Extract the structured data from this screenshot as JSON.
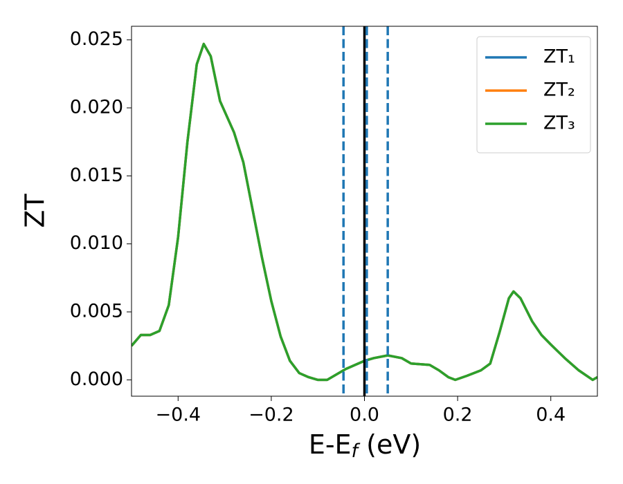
{
  "chart_data": {
    "type": "line",
    "ylabel": "ZT",
    "xlabel": {
      "main": "E-E",
      "sub": "f",
      "unit": " (eV)"
    },
    "x": [
      -0.5,
      -0.48,
      -0.46,
      -0.44,
      -0.42,
      -0.4,
      -0.38,
      -0.36,
      -0.345,
      -0.33,
      -0.31,
      -0.28,
      -0.26,
      -0.24,
      -0.22,
      -0.2,
      -0.18,
      -0.16,
      -0.14,
      -0.12,
      -0.1,
      -0.08,
      -0.06,
      -0.04,
      -0.02,
      0.0,
      0.02,
      0.05,
      0.08,
      0.1,
      0.14,
      0.16,
      0.18,
      0.195,
      0.22,
      0.25,
      0.27,
      0.29,
      0.31,
      0.32,
      0.335,
      0.36,
      0.38,
      0.4,
      0.43,
      0.46,
      0.49,
      0.5
    ],
    "series": [
      {
        "name": "ZT₁",
        "color": "#1f77b4",
        "values": [
          0.0025,
          0.0033,
          0.0033,
          0.0036,
          0.0055,
          0.0105,
          0.0175,
          0.0232,
          0.0247,
          0.0238,
          0.0205,
          0.0182,
          0.016,
          0.0125,
          0.009,
          0.0058,
          0.0032,
          0.0014,
          0.0005,
          0.0002,
          0.0,
          0.0,
          0.0004,
          0.0008,
          0.0011,
          0.0014,
          0.0016,
          0.0018,
          0.0016,
          0.0012,
          0.0011,
          0.0007,
          0.0002,
          0.0,
          0.0003,
          0.0007,
          0.0012,
          0.0035,
          0.006,
          0.0065,
          0.006,
          0.0043,
          0.0033,
          0.0026,
          0.0016,
          0.0007,
          0.0,
          0.0002
        ]
      },
      {
        "name": "ZT₂",
        "color": "#ff7f0e",
        "values": [
          0.0025,
          0.0033,
          0.0033,
          0.0036,
          0.0055,
          0.0105,
          0.0175,
          0.0232,
          0.0247,
          0.0238,
          0.0205,
          0.0182,
          0.016,
          0.0125,
          0.009,
          0.0058,
          0.0032,
          0.0014,
          0.0005,
          0.0002,
          0.0,
          0.0,
          0.0004,
          0.0008,
          0.0011,
          0.0014,
          0.0016,
          0.0018,
          0.0016,
          0.0012,
          0.0011,
          0.0007,
          0.0002,
          0.0,
          0.0003,
          0.0007,
          0.0012,
          0.0035,
          0.006,
          0.0065,
          0.006,
          0.0043,
          0.0033,
          0.0026,
          0.0016,
          0.0007,
          0.0,
          0.0002
        ]
      },
      {
        "name": "ZT₃",
        "color": "#2ca02c",
        "values": [
          0.0025,
          0.0033,
          0.0033,
          0.0036,
          0.0055,
          0.0105,
          0.0175,
          0.0232,
          0.0247,
          0.0238,
          0.0205,
          0.0182,
          0.016,
          0.0125,
          0.009,
          0.0058,
          0.0032,
          0.0014,
          0.0005,
          0.0002,
          0.0,
          0.0,
          0.0004,
          0.0008,
          0.0011,
          0.0014,
          0.0016,
          0.0018,
          0.0016,
          0.0012,
          0.0011,
          0.0007,
          0.0002,
          0.0,
          0.0003,
          0.0007,
          0.0012,
          0.0035,
          0.006,
          0.0065,
          0.006,
          0.0043,
          0.0033,
          0.0026,
          0.0016,
          0.0007,
          0.0,
          0.0002
        ]
      }
    ],
    "vlines": [
      {
        "x": 0.0,
        "color": "#000000",
        "style": "solid"
      },
      {
        "x": -0.045,
        "color": "#1f77b4",
        "style": "dashed"
      },
      {
        "x": 0.005,
        "color": "#1f77b4",
        "style": "dashed"
      },
      {
        "x": 0.05,
        "color": "#1f77b4",
        "style": "dashed"
      }
    ],
    "xlim": [
      -0.5,
      0.5
    ],
    "ylim": [
      -0.0012,
      0.026
    ],
    "xticks": [
      {
        "value": -0.4,
        "label": "−0.4"
      },
      {
        "value": -0.2,
        "label": "−0.2"
      },
      {
        "value": 0.0,
        "label": "0.0"
      },
      0.2,
      0.4
    ],
    "yticks": [
      {
        "value": 0.0,
        "label": "0.000"
      },
      {
        "value": 0.005,
        "label": "0.005"
      },
      {
        "value": 0.01,
        "label": "0.010"
      },
      {
        "value": 0.015,
        "label": "0.015"
      },
      {
        "value": 0.02,
        "label": "0.020"
      },
      {
        "value": 0.025,
        "label": "0.025"
      }
    ],
    "legend": "upper right"
  }
}
